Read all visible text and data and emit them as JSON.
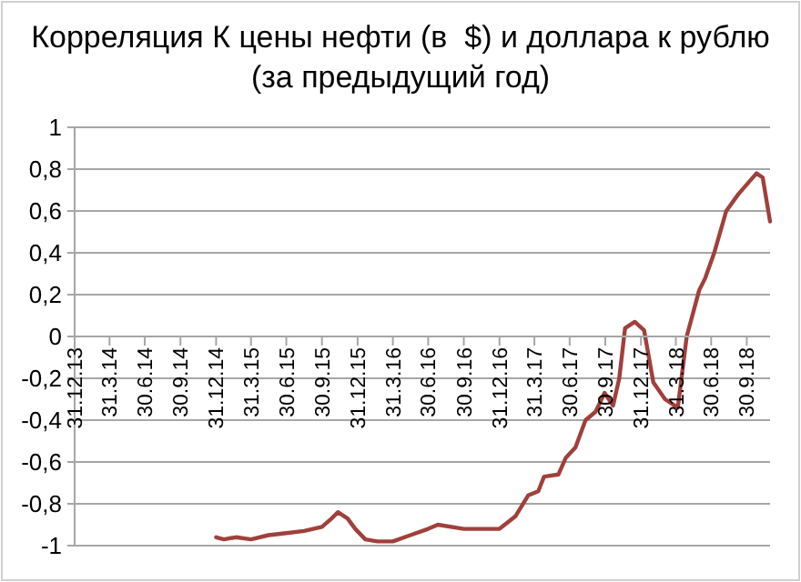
{
  "chart_data": {
    "type": "line",
    "title": "Корреляция К цены нефти (в  $) и доллара к рублю\n(за предыдущий год)",
    "xlim": [
      "2013-12-31",
      "2018-11-29"
    ],
    "xticks": [
      {
        "value": "2013-12-31",
        "label": "31.12.13"
      },
      {
        "value": "2014-03-31",
        "label": "31.3.14"
      },
      {
        "value": "2014-06-30",
        "label": "30.6.14"
      },
      {
        "value": "2014-09-30",
        "label": "30.9.14"
      },
      {
        "value": "2014-12-31",
        "label": "31.12.14"
      },
      {
        "value": "2015-03-31",
        "label": "31.3.15"
      },
      {
        "value": "2015-06-30",
        "label": "30.6.15"
      },
      {
        "value": "2015-09-30",
        "label": "30.9.15"
      },
      {
        "value": "2015-12-31",
        "label": "31.12.15"
      },
      {
        "value": "2016-03-31",
        "label": "31.3.16"
      },
      {
        "value": "2016-06-30",
        "label": "30.6.16"
      },
      {
        "value": "2016-09-30",
        "label": "30.9.16"
      },
      {
        "value": "2016-12-31",
        "label": "31.12.16"
      },
      {
        "value": "2017-03-31",
        "label": "31.3.17"
      },
      {
        "value": "2017-06-30",
        "label": "30.6.17"
      },
      {
        "value": "2017-09-30",
        "label": "30.9.17"
      },
      {
        "value": "2017-12-31",
        "label": "31.12.17"
      },
      {
        "value": "2018-03-31",
        "label": "31.3.18"
      },
      {
        "value": "2018-06-30",
        "label": "30.6.18"
      },
      {
        "value": "2018-09-30",
        "label": "30.9.18"
      }
    ],
    "ylim": [
      -1,
      1
    ],
    "yticks": [
      {
        "value": -1,
        "label": "-1"
      },
      {
        "value": -0.8,
        "label": "-0,8"
      },
      {
        "value": -0.6,
        "label": "-0,6"
      },
      {
        "value": -0.4,
        "label": "-0,4"
      },
      {
        "value": -0.2,
        "label": "-0,2"
      },
      0,
      {
        "value": 0.2,
        "label": "0,2"
      },
      {
        "value": 0.4,
        "label": "0,4"
      },
      {
        "value": 0.6,
        "label": "0,6"
      },
      {
        "value": 0.8,
        "label": "0,8"
      },
      1
    ],
    "grid": "y",
    "marker": "none",
    "line_style": "solid",
    "series": [
      {
        "color": "#a0403c",
        "x": [
          "2014-12-31",
          "2015-01-20",
          "2015-02-20",
          "2015-03-31",
          "2015-05-15",
          "2015-06-30",
          "2015-08-15",
          "2015-09-30",
          "2015-10-25",
          "2015-11-10",
          "2015-12-05",
          "2015-12-25",
          "2016-01-20",
          "2016-02-20",
          "2016-03-31",
          "2016-05-15",
          "2016-06-30",
          "2016-07-25",
          "2016-09-30",
          "2016-12-31",
          "2017-02-10",
          "2017-03-15",
          "2017-04-10",
          "2017-04-25",
          "2017-06-01",
          "2017-06-20",
          "2017-07-15",
          "2017-08-10",
          "2017-09-05",
          "2017-09-28",
          "2017-10-20",
          "2017-11-05",
          "2017-11-20",
          "2017-12-15",
          "2018-01-08",
          "2018-02-01",
          "2018-03-03",
          "2018-04-05",
          "2018-04-28",
          "2018-05-30",
          "2018-06-15",
          "2018-07-08",
          "2018-08-08",
          "2018-09-08",
          "2018-10-25",
          "2018-11-10",
          "2018-11-29"
        ],
        "values": [
          -0.96,
          -0.97,
          -0.96,
          -0.97,
          -0.95,
          -0.94,
          -0.93,
          -0.91,
          -0.87,
          -0.84,
          -0.87,
          -0.92,
          -0.97,
          -0.98,
          -0.98,
          -0.95,
          -0.92,
          -0.9,
          -0.92,
          -0.92,
          -0.86,
          -0.76,
          -0.74,
          -0.67,
          -0.66,
          -0.58,
          -0.53,
          -0.4,
          -0.36,
          -0.27,
          -0.33,
          -0.2,
          0.04,
          0.07,
          0.03,
          -0.22,
          -0.3,
          -0.34,
          0.0,
          0.22,
          0.28,
          0.4,
          0.6,
          0.68,
          0.78,
          0.76,
          0.55
        ]
      }
    ]
  }
}
